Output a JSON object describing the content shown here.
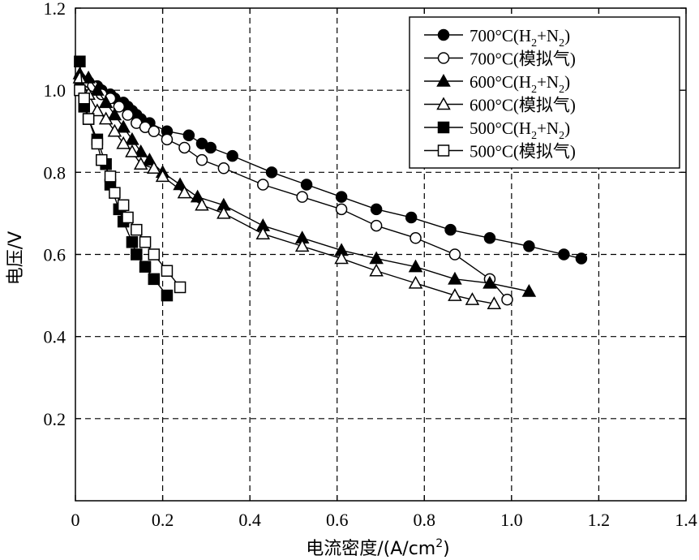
{
  "chart_data": {
    "type": "line",
    "title": "",
    "xlabel": "电流密度/(A/cm²)",
    "xlabel_main": "电流密度/(A/cm",
    "xlabel_sup": "2",
    "xlabel_close": ")",
    "ylabel": "电压/V",
    "xlim": [
      0,
      1.4
    ],
    "ylim": [
      0,
      1.2
    ],
    "xticks": [
      0,
      0.2,
      0.4,
      0.6,
      0.8,
      1.0,
      1.2,
      1.4
    ],
    "yticks": [
      0.2,
      0.4,
      0.6,
      0.8,
      1.0,
      1.2
    ],
    "xtick_labels": [
      "0",
      "0.2",
      "0.4",
      "0.6",
      "0.8",
      "1.0",
      "1.2",
      "1.4"
    ],
    "ytick_labels": [
      "0.2",
      "0.4",
      "0.6",
      "0.8",
      "1.0",
      "1.2"
    ],
    "grid": true,
    "legend_position": "top-right",
    "series": [
      {
        "name": "700°C(H2+N2)",
        "label_prefix": "700°C(H",
        "label_sub1": "2",
        "label_mid": "+N",
        "label_sub2": "2",
        "label_suffix": ")",
        "marker": "circle",
        "filled": true,
        "x": [
          0.01,
          0.03,
          0.05,
          0.06,
          0.08,
          0.09,
          0.11,
          0.12,
          0.13,
          0.14,
          0.15,
          0.17,
          0.21,
          0.26,
          0.29,
          0.31,
          0.36,
          0.45,
          0.53,
          0.61,
          0.69,
          0.77,
          0.86,
          0.95,
          1.04,
          1.12,
          1.16
        ],
        "y": [
          1.02,
          1.02,
          1.01,
          1.0,
          0.99,
          0.98,
          0.97,
          0.96,
          0.95,
          0.94,
          0.93,
          0.92,
          0.9,
          0.89,
          0.87,
          0.86,
          0.84,
          0.8,
          0.77,
          0.74,
          0.71,
          0.69,
          0.66,
          0.64,
          0.62,
          0.6,
          0.59
        ]
      },
      {
        "name": "700°C(模拟气)",
        "label_prefix": "700°C(模拟气)",
        "marker": "circle",
        "filled": false,
        "x": [
          0.01,
          0.03,
          0.04,
          0.06,
          0.08,
          0.1,
          0.12,
          0.14,
          0.16,
          0.18,
          0.21,
          0.25,
          0.29,
          0.34,
          0.43,
          0.52,
          0.61,
          0.69,
          0.78,
          0.87,
          0.95,
          0.99
        ],
        "y": [
          1.03,
          1.02,
          1.01,
          0.99,
          0.98,
          0.96,
          0.94,
          0.92,
          0.91,
          0.9,
          0.88,
          0.86,
          0.83,
          0.81,
          0.77,
          0.74,
          0.71,
          0.67,
          0.64,
          0.6,
          0.54,
          0.49
        ]
      },
      {
        "name": "600°C(H2+N2)",
        "label_prefix": "600°C(H",
        "label_sub1": "2",
        "label_mid": "+N",
        "label_sub2": "2",
        "label_suffix": ")",
        "marker": "triangle",
        "filled": true,
        "x": [
          0.01,
          0.03,
          0.05,
          0.07,
          0.09,
          0.11,
          0.13,
          0.15,
          0.17,
          0.2,
          0.24,
          0.28,
          0.34,
          0.43,
          0.52,
          0.61,
          0.69,
          0.78,
          0.87,
          0.95,
          1.04
        ],
        "y": [
          1.04,
          1.03,
          1.0,
          0.97,
          0.94,
          0.91,
          0.88,
          0.85,
          0.83,
          0.8,
          0.77,
          0.74,
          0.72,
          0.67,
          0.64,
          0.61,
          0.59,
          0.57,
          0.54,
          0.53,
          0.51
        ]
      },
      {
        "name": "600°C(模拟气)",
        "label_prefix": "600°C(模拟气)",
        "marker": "triangle",
        "filled": false,
        "x": [
          0.01,
          0.03,
          0.05,
          0.07,
          0.09,
          0.11,
          0.13,
          0.15,
          0.18,
          0.2,
          0.25,
          0.29,
          0.34,
          0.43,
          0.52,
          0.61,
          0.69,
          0.78,
          0.87,
          0.91,
          0.96
        ],
        "y": [
          1.03,
          0.99,
          0.95,
          0.93,
          0.9,
          0.87,
          0.85,
          0.82,
          0.81,
          0.79,
          0.75,
          0.72,
          0.7,
          0.65,
          0.62,
          0.59,
          0.56,
          0.53,
          0.5,
          0.49,
          0.48
        ]
      },
      {
        "name": "500°C(H2+N2)",
        "label_prefix": "500°C(H",
        "label_sub1": "2",
        "label_mid": "+N",
        "label_sub2": "2",
        "label_suffix": ")",
        "marker": "square",
        "filled": true,
        "x": [
          0.01,
          0.02,
          0.03,
          0.05,
          0.07,
          0.08,
          0.1,
          0.11,
          0.13,
          0.14,
          0.16,
          0.18,
          0.21
        ],
        "y": [
          1.07,
          0.96,
          0.93,
          0.88,
          0.82,
          0.77,
          0.71,
          0.68,
          0.63,
          0.6,
          0.57,
          0.54,
          0.5
        ]
      },
      {
        "name": "500°C(模拟气)",
        "label_prefix": "500°C(模拟气)",
        "marker": "square",
        "filled": false,
        "x": [
          0.01,
          0.02,
          0.03,
          0.05,
          0.06,
          0.08,
          0.09,
          0.11,
          0.12,
          0.14,
          0.16,
          0.18,
          0.21,
          0.24
        ],
        "y": [
          1.0,
          0.98,
          0.93,
          0.87,
          0.83,
          0.79,
          0.75,
          0.72,
          0.69,
          0.66,
          0.63,
          0.6,
          0.56,
          0.52
        ]
      }
    ]
  }
}
